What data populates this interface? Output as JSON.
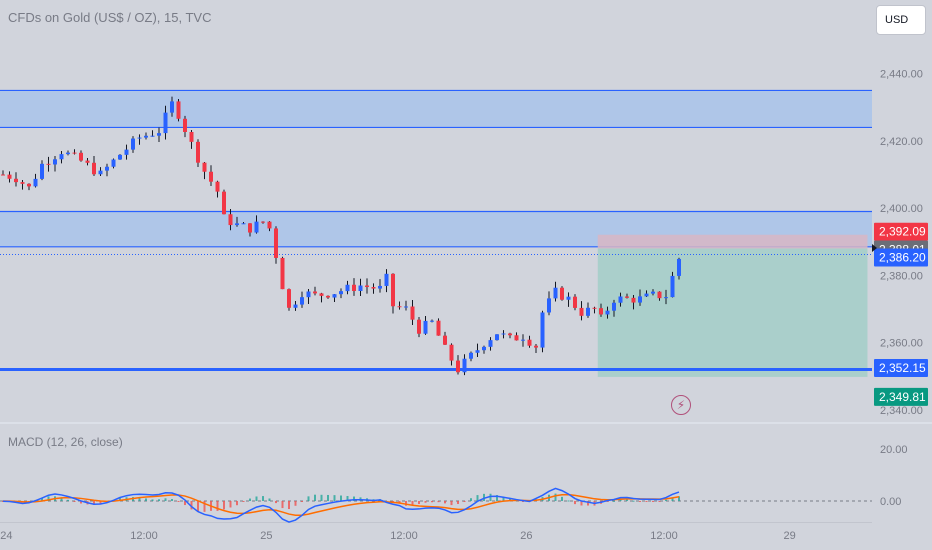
{
  "header": {
    "title": "CFDs on Gold (US$ / OZ), 15, TVC",
    "currency": "USD"
  },
  "macd": {
    "label": "MACD (12, 26, close)",
    "ticks": [
      "20.00",
      "0.00"
    ]
  },
  "colors": {
    "up": "#2962ff",
    "down": "#f23645",
    "zone": "#a9c3ea",
    "zone_line": "#2962ff",
    "target": "#a3cec8",
    "stop": "#d8b6c4",
    "macd_line": "#2962ff",
    "signal_line": "#ff6d00",
    "tag_red": "#f23645",
    "tag_gray": "#6b6e77",
    "tag_blue": "#2962ff",
    "tag_green": "#089981"
  },
  "chart_data": {
    "type": "candlestick",
    "title": "CFDs on Gold (US$ / OZ), 15, TVC",
    "ylim": [
      2337,
      2450
    ],
    "yticks": [
      "2,440.00",
      "2,420.00",
      "2,400.00",
      "2,380.00",
      "2,360.00",
      "2,340.00"
    ],
    "yticks_values": [
      2440,
      2420,
      2400,
      2380,
      2360,
      2340
    ],
    "xticks": [
      {
        "label": "24",
        "t": 0.5
      },
      {
        "label": "12:00",
        "t": 20.5
      },
      {
        "label": "25",
        "t": 40.5
      },
      {
        "label": "12:00",
        "t": 60.5
      },
      {
        "label": "26",
        "t": 80.5
      },
      {
        "label": "12:00",
        "t": 100.5
      },
      {
        "label": "29",
        "t": 121
      }
    ],
    "close_path": [
      [
        0,
        2410
      ],
      [
        2,
        2409
      ],
      [
        4,
        2406
      ],
      [
        6,
        2413
      ],
      [
        9,
        2417
      ],
      [
        12,
        2414
      ],
      [
        15,
        2410
      ],
      [
        18,
        2416
      ],
      [
        21,
        2421
      ],
      [
        24,
        2423
      ],
      [
        26,
        2431
      ],
      [
        27,
        2428
      ],
      [
        29,
        2419
      ],
      [
        31,
        2411
      ],
      [
        33,
        2405
      ],
      [
        34,
        2397
      ],
      [
        36,
        2395
      ],
      [
        38,
        2394
      ],
      [
        40,
        2396
      ],
      [
        41,
        2394
      ],
      [
        42,
        2386
      ],
      [
        43,
        2377
      ],
      [
        44,
        2370
      ],
      [
        46,
        2375
      ],
      [
        48,
        2374
      ],
      [
        51,
        2375
      ],
      [
        55,
        2377
      ],
      [
        58,
        2376
      ],
      [
        59,
        2379
      ],
      [
        60,
        2371
      ],
      [
        62,
        2370
      ],
      [
        64,
        2364
      ],
      [
        66,
        2366
      ],
      [
        68,
        2358
      ],
      [
        70,
        2352
      ],
      [
        72,
        2356
      ],
      [
        74,
        2360
      ],
      [
        76,
        2363
      ],
      [
        78,
        2361
      ],
      [
        80,
        2362
      ],
      [
        82,
        2359
      ],
      [
        83,
        2369
      ],
      [
        85,
        2375
      ],
      [
        87,
        2373
      ],
      [
        89,
        2369
      ],
      [
        91,
        2370
      ],
      [
        92,
        2367
      ],
      [
        94,
        2373
      ],
      [
        96,
        2373
      ],
      [
        98,
        2373
      ],
      [
        100,
        2374
      ],
      [
        102,
        2374
      ],
      [
        104,
        2385
      ]
    ],
    "zones": [
      {
        "top": 2435,
        "bottom": 2424
      },
      {
        "top": 2399,
        "bottom": 2388.5
      }
    ],
    "dotted_line": 2386.2,
    "support_line": 2352,
    "position": {
      "start": 91.5,
      "end": 133,
      "stop_top": 2392.09,
      "entry": 2388.01,
      "target": 2349.81
    },
    "price_tags": [
      {
        "label": "2,392.09",
        "value": 2392.09,
        "kind": "red"
      },
      {
        "label": "2,388.01",
        "value": 2388.01,
        "kind": "gray"
      },
      {
        "label": "2,386.20",
        "value": 2386.2,
        "kind": "blue"
      },
      {
        "label": "2,352.15",
        "value": 2352.15,
        "kind": "blue"
      },
      {
        "label": "2,349.81",
        "value": 2349.81,
        "kind": "green"
      }
    ]
  }
}
